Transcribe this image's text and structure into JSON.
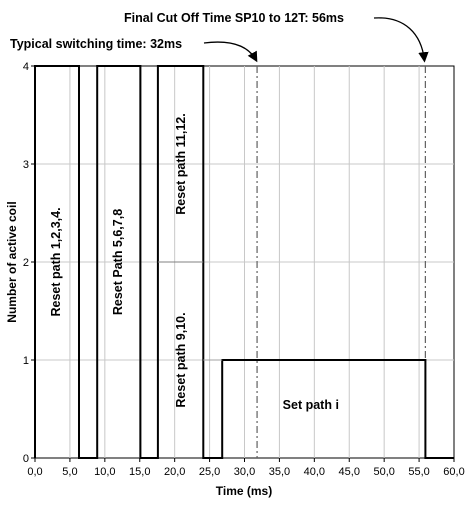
{
  "chart_data": {
    "type": "line",
    "title": "",
    "xlabel": "Time (ms)",
    "ylabel": "Number of active coil",
    "xlim": [
      0,
      60
    ],
    "ylim": [
      0,
      4
    ],
    "xticks": [
      0,
      5,
      10,
      15,
      20,
      25,
      30,
      35,
      40,
      45,
      50,
      55,
      60
    ],
    "xtick_labels": [
      "0,0",
      "5,0",
      "10,0",
      "15,0",
      "20,0",
      "25,0",
      "30,0",
      "35,0",
      "40,0",
      "45,0",
      "50,0",
      "55,0",
      "60,0"
    ],
    "yticks": [
      0,
      1,
      2,
      3,
      4
    ],
    "ytick_labels": [
      "0",
      "1",
      "2",
      "3",
      "4"
    ],
    "grid": true,
    "series": [
      {
        "color": "#000000",
        "x": [
          0,
          0,
          6.3,
          6.3,
          8.9,
          8.9,
          15.1,
          15.1,
          17.6,
          17.6,
          18.0,
          18.0,
          24.1,
          24.1,
          26.8,
          26.8,
          55.9,
          55.9,
          60
        ],
        "y": [
          0,
          4,
          4,
          0,
          0,
          4,
          4,
          0,
          0,
          4,
          4,
          4,
          4,
          0,
          0,
          1,
          1,
          0,
          0
        ]
      }
    ],
    "reference_lines": [
      {
        "x": 31.8,
        "color": "#606060",
        "style": "dashdot"
      },
      {
        "x": 55.9,
        "color": "#606060",
        "style": "dashdot"
      }
    ],
    "region_labels": [
      {
        "text": "Reset path 1,2,3,4.",
        "x": 3.1,
        "y": 2.0,
        "rotate": -90
      },
      {
        "text": "Reset Path 5,6,7,8",
        "x": 12.0,
        "y": 2.0,
        "rotate": -90
      },
      {
        "text": "Reset path 11,12.",
        "x": 21.0,
        "y": 3.0,
        "rotate": -90
      },
      {
        "text": "Reset path 9,10.",
        "x": 21.0,
        "y": 1.0,
        "rotate": -90
      },
      {
        "text": "Set path i",
        "x": 39.5,
        "y": 0.5,
        "rotate": 0
      }
    ],
    "annotations": [
      {
        "text": "Typical switching time: 32ms",
        "target_x": 31.8
      },
      {
        "text": "Final Cut Off Time  SP10  to 12T: 56ms",
        "target_x": 55.9
      }
    ]
  }
}
